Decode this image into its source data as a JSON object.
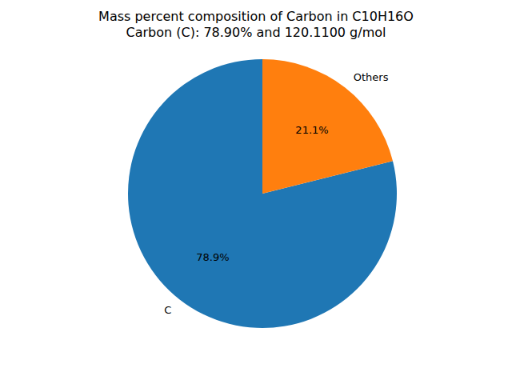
{
  "chart_data": {
    "type": "pie",
    "title": "Mass percent composition of Carbon in C10H16O",
    "subtitle": "Carbon (C): 78.90% and 120.1100 g/mol",
    "categories": [
      "C",
      "Others"
    ],
    "values": [
      78.9,
      21.1
    ],
    "value_labels": [
      "78.9%",
      "21.1%"
    ],
    "colors": [
      "#1f77b4",
      "#ff7f0e"
    ],
    "data_labels": true
  }
}
